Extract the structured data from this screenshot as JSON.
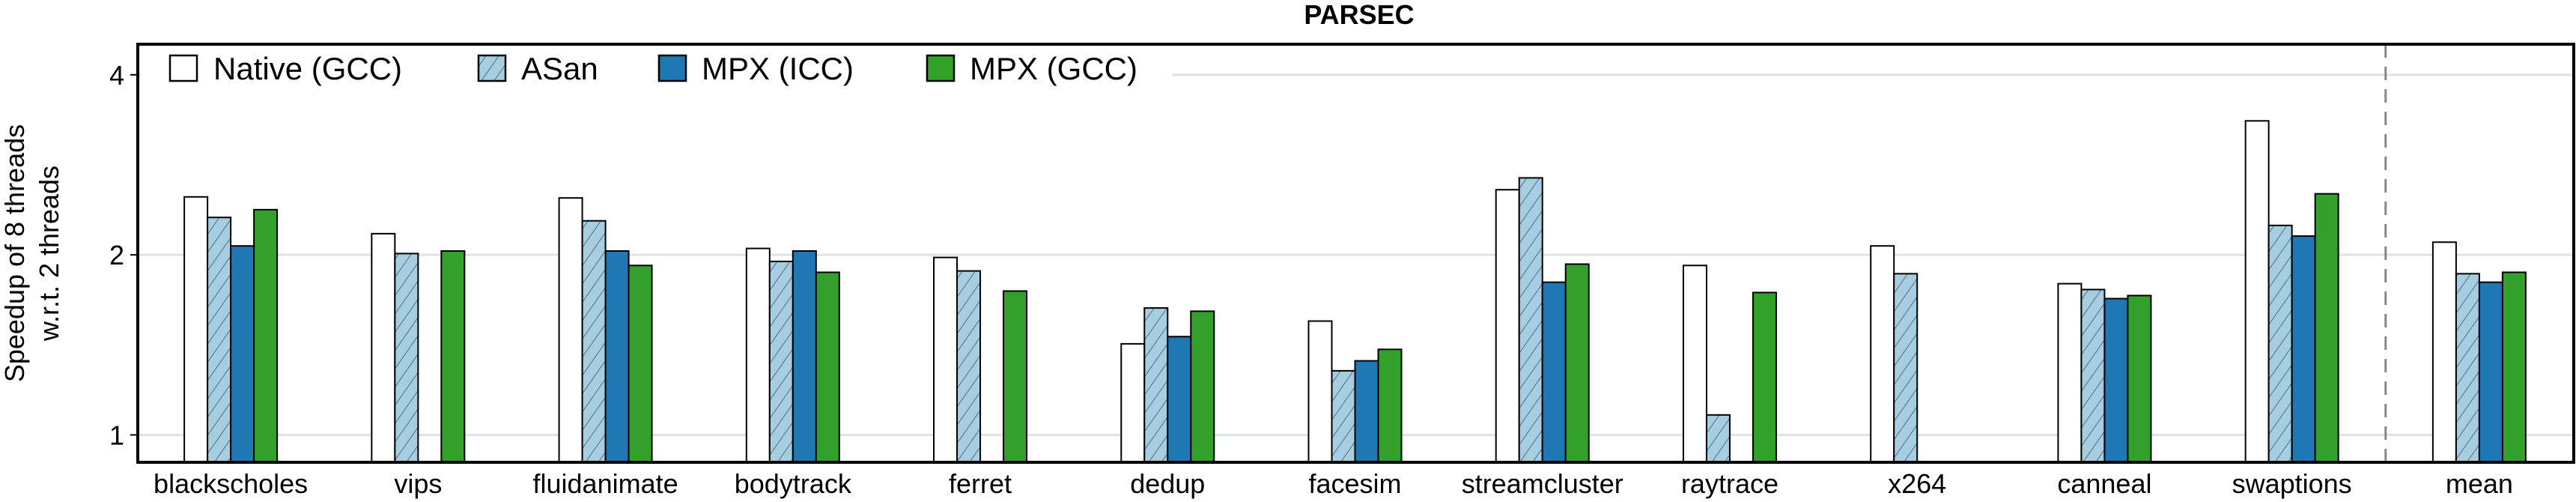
{
  "chart_data": {
    "type": "bar",
    "title": "PARSEC",
    "xlabel": "",
    "ylabel": [
      "Speedup of 8 threads",
      "w.r.t. 2 threads"
    ],
    "yscale": "log2",
    "ylim": [
      0.9,
      4.5
    ],
    "yticks": [
      1,
      2,
      4
    ],
    "ytick_labels": [
      "1",
      "2",
      "4"
    ],
    "grid": true,
    "legend_placement": "top-left",
    "categories": [
      "blackscholes",
      "vips",
      "fluidanimate",
      "bodytrack",
      "ferret",
      "dedup",
      "facesim",
      "streamcluster",
      "raytrace",
      "x264",
      "canneal",
      "swaptions",
      "mean"
    ],
    "separator_before": "mean",
    "series": [
      {
        "name": "Native (GCC)",
        "color": "#ffffff",
        "hatch": false,
        "values": [
          2.5,
          2.17,
          2.49,
          2.05,
          1.98,
          1.42,
          1.55,
          2.57,
          1.92,
          2.07,
          1.79,
          3.35,
          2.1
        ]
      },
      {
        "name": "ASan",
        "color": "#a6cee3",
        "hatch": true,
        "values": [
          2.31,
          2.01,
          2.28,
          1.95,
          1.88,
          1.63,
          1.28,
          2.69,
          1.08,
          1.86,
          1.75,
          2.24,
          1.86
        ]
      },
      {
        "name": "MPX (ICC)",
        "color": "#1f78b4",
        "hatch": false,
        "values": [
          2.07,
          null,
          2.03,
          2.03,
          null,
          1.46,
          1.33,
          1.8,
          null,
          null,
          1.69,
          2.15,
          1.8
        ]
      },
      {
        "name": "MPX (GCC)",
        "color": "#33a02c",
        "hatch": false,
        "values": [
          2.38,
          2.03,
          1.92,
          1.87,
          1.74,
          1.61,
          1.39,
          1.93,
          1.73,
          null,
          1.71,
          2.53,
          1.87
        ]
      }
    ]
  }
}
